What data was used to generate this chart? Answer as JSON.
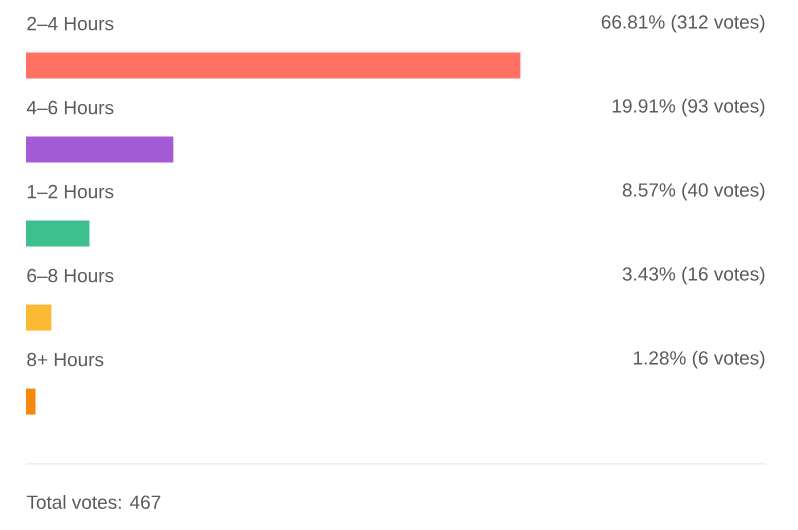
{
  "chart_data": {
    "type": "bar",
    "orientation": "horizontal",
    "categories": [
      "2–4 Hours",
      "4–6 Hours",
      "1–2 Hours",
      "6–8 Hours",
      "8+ Hours"
    ],
    "values": [
      66.81,
      19.91,
      8.57,
      3.43,
      1.28
    ],
    "value_labels": [
      "66.81% (312 votes)",
      "19.91% (93 votes)",
      "8.57% (40 votes)",
      "3.43% (16 votes)",
      "1.28% (6 votes)"
    ],
    "colors": [
      "#ff7263",
      "#a55bd6",
      "#3ebf8e",
      "#fbb933",
      "#f5870c"
    ],
    "xlim": [
      0,
      100
    ],
    "annotations": [
      "Total votes: 467"
    ]
  }
}
